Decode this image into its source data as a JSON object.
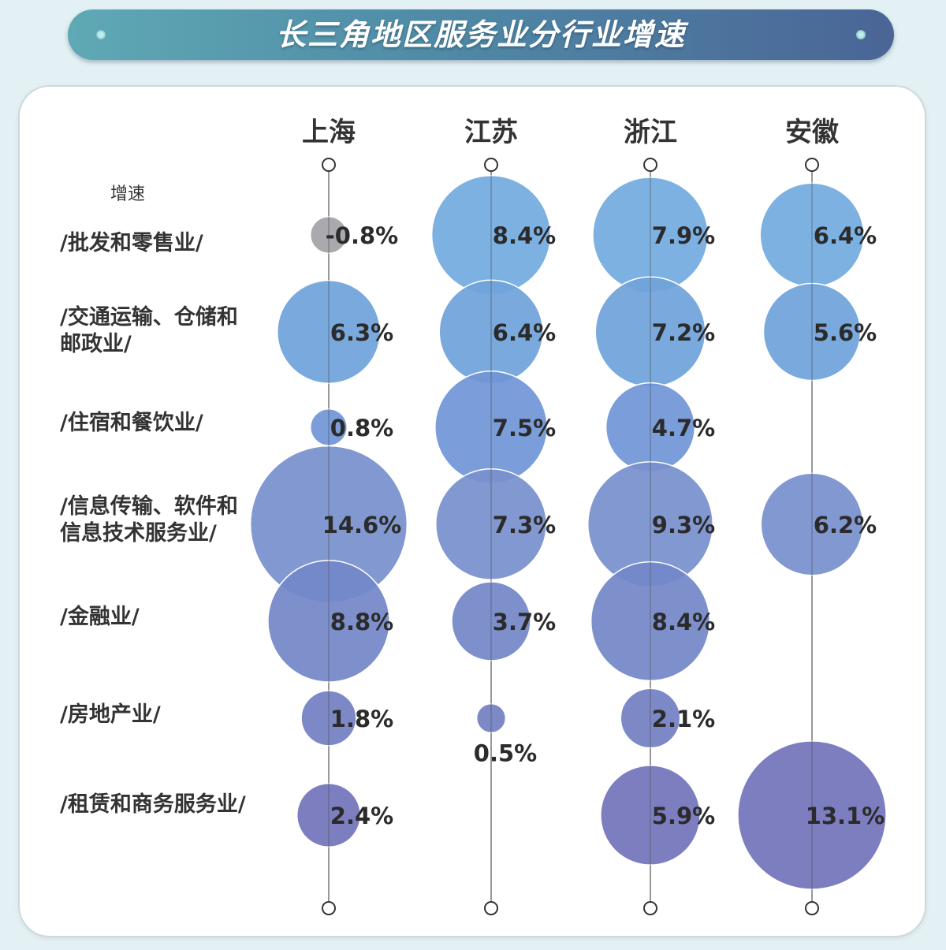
{
  "title": "长三角地区服务业分行业增速",
  "chart_data": {
    "type": "bubble",
    "value_label": "增速",
    "regions": [
      "上海",
      "江苏",
      "浙江",
      "安徽"
    ],
    "categories": [
      [
        "/批发和零售业/"
      ],
      [
        "/交通运输、仓储和",
        "邮政业/"
      ],
      [
        "/住宿和餐饮业/"
      ],
      [
        "/信息传输、软件和",
        "信息技术服务业/"
      ],
      [
        "/金融业/"
      ],
      [
        "/房地产业/"
      ],
      [
        "/租赁和商务服务业/"
      ]
    ],
    "values": [
      [
        -0.8,
        8.4,
        7.9,
        6.4
      ],
      [
        6.3,
        6.4,
        7.2,
        5.6
      ],
      [
        0.8,
        7.5,
        4.7,
        null
      ],
      [
        14.6,
        7.3,
        9.3,
        6.2
      ],
      [
        8.8,
        3.7,
        8.4,
        null
      ],
      [
        1.8,
        0.5,
        2.1,
        null
      ],
      [
        2.4,
        null,
        5.9,
        13.1
      ]
    ],
    "labels": [
      [
        "-0.8%",
        "8.4%",
        "7.9%",
        "6.4%"
      ],
      [
        "6.3%",
        "6.4%",
        "7.2%",
        "5.6%"
      ],
      [
        "0.8%",
        "7.5%",
        "4.7%",
        null
      ],
      [
        "14.6%",
        "7.3%",
        "9.3%",
        "6.2%"
      ],
      [
        "8.8%",
        "3.7%",
        "8.4%",
        null
      ],
      [
        "1.8%",
        "0.5%",
        "2.1%",
        null
      ],
      [
        "2.4%",
        null,
        "5.9%",
        "13.1%"
      ]
    ],
    "colors": {
      "negative": "#a3a3a8",
      "row_colors": [
        "#73abe0",
        "#6fa2da",
        "#7196d6",
        "#7890cc",
        "#7388c8",
        "#7280c2",
        "#7274ba"
      ],
      "line": "#555555",
      "text": "#2b2b2b"
    }
  }
}
